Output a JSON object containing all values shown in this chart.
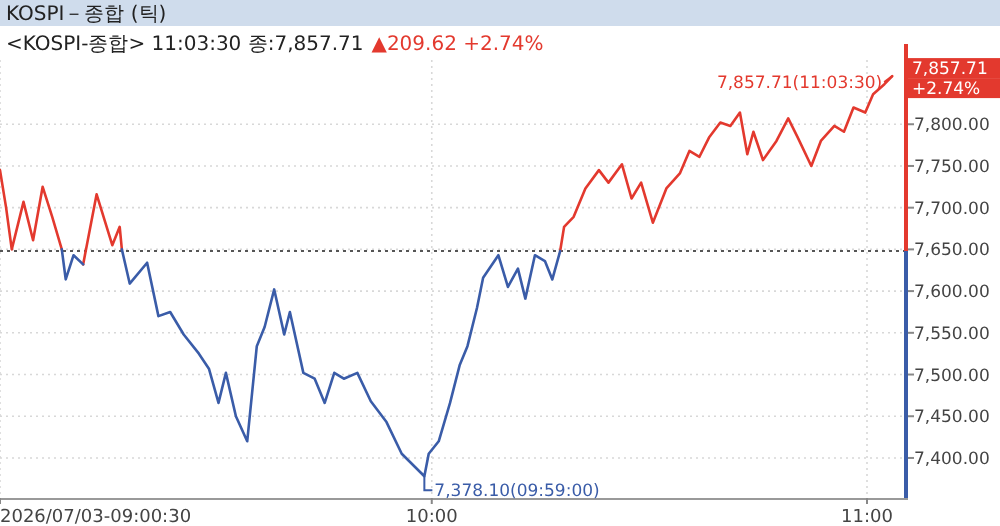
{
  "chart_data": {
    "type": "line",
    "title": "KOSPI－종합 (틱)",
    "subtitle": "<KOSPI-종합> 11:03:30 종:7,857.71",
    "x": [
      9.008,
      9.022,
      9.035,
      9.062,
      9.084,
      9.106,
      9.128,
      9.15,
      9.159,
      9.177,
      9.199,
      9.23,
      9.266,
      9.283,
      9.288,
      9.306,
      9.346,
      9.372,
      9.399,
      9.43,
      9.465,
      9.488,
      9.51,
      9.527,
      9.55,
      9.576,
      9.598,
      9.616,
      9.638,
      9.661,
      9.674,
      9.705,
      9.731,
      9.754,
      9.776,
      9.798,
      9.829,
      9.86,
      9.896,
      9.931,
      9.983,
      9.993,
      10.016,
      10.042,
      10.064,
      10.082,
      10.104,
      10.118,
      10.153,
      10.175,
      10.198,
      10.215,
      10.237,
      10.26,
      10.277,
      10.295,
      10.304,
      10.326,
      10.353,
      10.384,
      10.406,
      10.437,
      10.459,
      10.481,
      10.508,
      10.539,
      10.57,
      10.592,
      10.615,
      10.637,
      10.663,
      10.686,
      10.708,
      10.725,
      10.739,
      10.761,
      10.792,
      10.819,
      10.841,
      10.872,
      10.894,
      10.925,
      10.947,
      10.969,
      10.996,
      11.014,
      11.04,
      11.058
    ],
    "series": [
      {
        "color": "#e3392e",
        "values": [
          7745,
          7700,
          7650,
          7707,
          7661,
          7725,
          7689,
          7650,
          null,
          null,
          7632,
          7716,
          7655,
          7677,
          7650,
          null,
          null,
          null,
          null,
          null,
          null,
          null,
          null,
          null,
          null,
          null,
          null,
          null,
          null,
          null,
          null,
          null,
          null,
          null,
          null,
          null,
          null,
          null,
          null,
          null,
          null,
          null,
          null,
          null,
          null,
          null,
          null,
          null,
          null,
          null,
          null,
          null,
          null,
          null,
          null,
          7648,
          7677,
          7689,
          7723,
          7745,
          7730,
          7752,
          7711,
          7730,
          7682,
          7723,
          7741,
          7768,
          7761,
          7784,
          7802,
          7798,
          7814,
          7764,
          7791,
          7757,
          7780,
          7807,
          7784,
          7750,
          7780,
          7798,
          7791,
          7820,
          7814,
          7836,
          7848,
          7857.71
        ]
      },
      {
        "color": "#3a5ca8",
        "values": [
          null,
          null,
          null,
          null,
          null,
          null,
          null,
          7650,
          7614,
          7643,
          7632,
          null,
          null,
          null,
          7650,
          7609,
          7634,
          7570,
          7575,
          7548,
          7525,
          7507,
          7466,
          7502,
          7450,
          7420,
          7534,
          7557,
          7602,
          7548,
          7575,
          7502,
          7495,
          7466,
          7502,
          7495,
          7502,
          7468,
          7443,
          7405,
          7378.1,
          7405,
          7420,
          7466,
          7511,
          7534,
          7580,
          7616,
          7643,
          7605,
          7627,
          7591,
          7643,
          7636,
          7614,
          7648,
          null,
          null,
          null,
          null,
          null,
          null,
          null,
          null,
          null,
          null,
          null,
          null,
          null,
          null,
          null,
          null,
          null,
          null,
          null,
          null,
          null,
          null,
          null,
          null,
          null,
          null,
          null,
          null,
          null,
          null,
          null,
          null
        ]
      }
    ],
    "ref_lines": [
      {
        "axis": "y",
        "value": 7648.09,
        "color": "#555555",
        "line_style": "dotted"
      }
    ],
    "xlim": [
      9.008,
      11.085
    ],
    "ylim": [
      7352,
      7877
    ],
    "xticks": [
      {
        "value": 9.008,
        "label": "2026/07/03-09:00:30"
      },
      {
        "value": 10,
        "label": "10:00"
      },
      {
        "value": 11,
        "label": "11:00"
      }
    ],
    "yticks": [
      {
        "value": 7400,
        "label": "7,400.00"
      },
      {
        "value": 7450,
        "label": "7,450.00"
      },
      {
        "value": 7500,
        "label": "7,500.00"
      },
      {
        "value": 7550,
        "label": "7,550.00"
      },
      {
        "value": 7600,
        "label": "7,600.00"
      },
      {
        "value": 7650,
        "label": "7,650.00"
      },
      {
        "value": 7700,
        "label": "7,700.00"
      },
      {
        "value": 7750,
        "label": "7,750.00"
      },
      {
        "value": 7800,
        "label": "7,800.00"
      }
    ],
    "grid": true,
    "line_style": "solid",
    "annotations": [
      {
        "text": "7,857.71(11:03:30)",
        "x": 11.058,
        "y": 7857.71
      },
      {
        "text": "7,378.10(09:59:00)",
        "x": 9.983,
        "y": 7378.1
      },
      "▲209.62 +2.74%",
      "7,857.71",
      "+2.74%"
    ]
  }
}
